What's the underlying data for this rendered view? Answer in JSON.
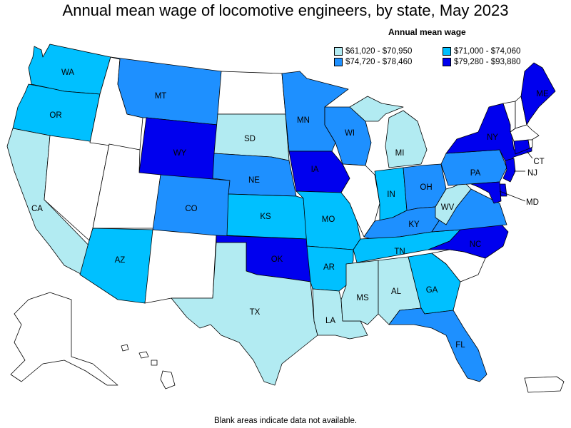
{
  "title": "Annual mean wage of locomotive engineers, by state, May 2023",
  "legend": {
    "title": "Annual mean wage",
    "items": [
      {
        "label": "$61,020 - $70,950",
        "color": "#b2ebf2"
      },
      {
        "label": "$71,000 - $74,060",
        "color": "#00c0ff"
      },
      {
        "label": "$74,720 - $78,460",
        "color": "#1e90ff"
      },
      {
        "label": "$79,280 - $93,880",
        "color": "#0000ee"
      }
    ]
  },
  "footnote": "Blank areas indicate data not available.",
  "colors": {
    "no_data": "#ffffff",
    "outline": "#000000"
  },
  "states": {
    "WA": {
      "label": "WA",
      "bin": 1
    },
    "OR": {
      "label": "OR",
      "bin": 1
    },
    "CA": {
      "label": "CA",
      "bin": 0
    },
    "NV": {
      "label": "",
      "bin": -1
    },
    "ID": {
      "label": "",
      "bin": -1
    },
    "MT": {
      "label": "MT",
      "bin": 2
    },
    "WY": {
      "label": "WY",
      "bin": 3
    },
    "UT": {
      "label": "",
      "bin": -1
    },
    "AZ": {
      "label": "AZ",
      "bin": 1
    },
    "CO": {
      "label": "CO",
      "bin": 2
    },
    "NM": {
      "label": "",
      "bin": -1
    },
    "ND": {
      "label": "",
      "bin": -1
    },
    "SD": {
      "label": "SD",
      "bin": 0
    },
    "NE": {
      "label": "NE",
      "bin": 2
    },
    "KS": {
      "label": "KS",
      "bin": 1
    },
    "OK": {
      "label": "OK",
      "bin": 3
    },
    "TX": {
      "label": "TX",
      "bin": 0
    },
    "MN": {
      "label": "MN",
      "bin": 2
    },
    "IA": {
      "label": "IA",
      "bin": 3
    },
    "MO": {
      "label": "MO",
      "bin": 1
    },
    "AR": {
      "label": "AR",
      "bin": 1
    },
    "LA": {
      "label": "LA",
      "bin": 0
    },
    "WI": {
      "label": "WI",
      "bin": 2
    },
    "IL": {
      "label": "",
      "bin": -1
    },
    "MI": {
      "label": "MI",
      "bin": 0
    },
    "IN": {
      "label": "IN",
      "bin": 1
    },
    "OH": {
      "label": "OH",
      "bin": 2
    },
    "KY": {
      "label": "KY",
      "bin": 2
    },
    "TN": {
      "label": "TN",
      "bin": 1
    },
    "MS": {
      "label": "MS",
      "bin": 0
    },
    "AL": {
      "label": "AL",
      "bin": 0
    },
    "GA": {
      "label": "GA",
      "bin": 1
    },
    "FL": {
      "label": "FL",
      "bin": 2
    },
    "SC": {
      "label": "",
      "bin": -1
    },
    "NC": {
      "label": "NC",
      "bin": 3
    },
    "VA": {
      "label": "",
      "bin": 2
    },
    "WV": {
      "label": "WV",
      "bin": 0
    },
    "PA": {
      "label": "PA",
      "bin": 2
    },
    "NY": {
      "label": "NY",
      "bin": 3
    },
    "VT": {
      "label": "",
      "bin": -1
    },
    "NH": {
      "label": "",
      "bin": -1
    },
    "ME": {
      "label": "ME",
      "bin": 3
    },
    "MA": {
      "label": "",
      "bin": -1
    },
    "CT": {
      "label": "CT",
      "bin": 3
    },
    "RI": {
      "label": "",
      "bin": -1
    },
    "NJ": {
      "label": "NJ",
      "bin": 3
    },
    "DE": {
      "label": "",
      "bin": 3
    },
    "MD": {
      "label": "MD",
      "bin": 3
    },
    "AK": {
      "label": "",
      "bin": -1
    },
    "HI": {
      "label": "",
      "bin": -1
    },
    "PR": {
      "label": "",
      "bin": -1
    }
  }
}
